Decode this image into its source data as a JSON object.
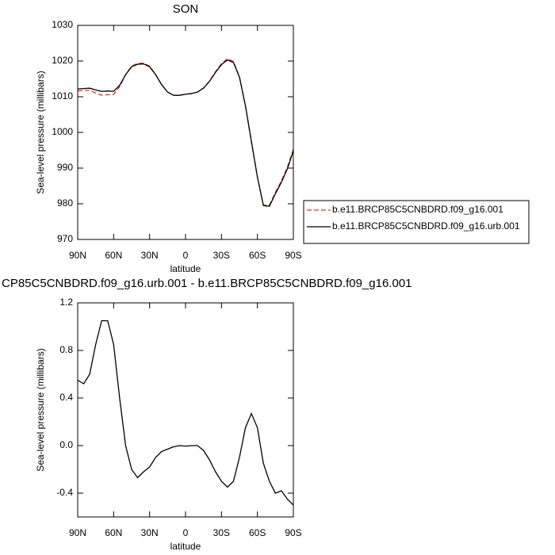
{
  "chart_data": [
    {
      "type": "line",
      "title": "SON",
      "xlabel": "latitude",
      "ylabel": "Sea-level pressure (millibars)",
      "x": [
        90,
        85,
        80,
        75,
        70,
        65,
        60,
        55,
        50,
        45,
        40,
        35,
        30,
        25,
        20,
        15,
        10,
        5,
        0,
        -5,
        -10,
        -15,
        -20,
        -25,
        -30,
        -35,
        -40,
        -45,
        -50,
        -55,
        -60,
        -65,
        -70,
        -75,
        -80,
        -85,
        -90
      ],
      "series": [
        {
          "name": "b.e11.BRCP85C5CNBDRD.f09_g16.001",
          "color": "#e0302e",
          "linestyle": "dashed",
          "values": [
            1011.65,
            1011.78,
            1011.8,
            1011.05,
            1010.45,
            1010.55,
            1010.65,
            1012.8,
            1016.2,
            1018.6,
            1019.37,
            1019.42,
            1018.58,
            1016.3,
            1013.45,
            1011.33,
            1010.41,
            1010.4,
            1010.7,
            1010.9,
            1011.3,
            1012.44,
            1014.42,
            1017.02,
            1019.3,
            1020.65,
            1019.9,
            1015.6,
            1007.35,
            997.23,
            987.35,
            979.65,
            979.6,
            983.2,
            986.38,
            990.25,
            995.3
          ]
        },
        {
          "name": "b.e11.BRCP85C5CNBDRD.f09_g16.urb.001",
          "color": "#000000",
          "linestyle": "solid",
          "values": [
            1012.2,
            1012.3,
            1012.4,
            1011.9,
            1011.5,
            1011.6,
            1011.5,
            1013.2,
            1016.2,
            1018.4,
            1019.1,
            1019.2,
            1018.4,
            1016.2,
            1013.4,
            1011.3,
            1010.4,
            1010.4,
            1010.7,
            1010.9,
            1011.3,
            1012.4,
            1014.3,
            1016.8,
            1019.0,
            1020.3,
            1019.6,
            1015.5,
            1007.5,
            997.5,
            987.5,
            979.5,
            979.3,
            982.8,
            986.0,
            989.8,
            994.8
          ]
        }
      ],
      "xlim": [
        90,
        -90
      ],
      "xticks": [
        {
          "value": 90,
          "label": "90N"
        },
        {
          "value": 60,
          "label": "60N"
        },
        {
          "value": 30,
          "label": "30N"
        },
        0,
        {
          "value": -30,
          "label": "30S"
        },
        {
          "value": -60,
          "label": "60S"
        },
        {
          "value": -90,
          "label": "90S"
        }
      ],
      "ylim": [
        970,
        1030
      ],
      "yticks": [
        970,
        980,
        990,
        1000,
        1010,
        1020,
        1030
      ],
      "legend": "right"
    },
    {
      "type": "line",
      "title": "CP85C5CNBDRD.f09_g16.urb.001 - b.e11.BRCP85C5CNBDRD.f09_g16.001",
      "xlabel": "latitude",
      "ylabel": "Sea-level pressure (millibars)",
      "x": [
        90,
        85,
        80,
        75,
        70,
        65,
        60,
        55,
        50,
        45,
        40,
        35,
        30,
        25,
        20,
        15,
        10,
        5,
        0,
        -5,
        -10,
        -15,
        -20,
        -25,
        -30,
        -35,
        -40,
        -45,
        -50,
        -55,
        -60,
        -65,
        -70,
        -75,
        -80,
        -85,
        -90
      ],
      "series": [
        {
          "color": "#000000",
          "linestyle": "solid",
          "values": [
            0.55,
            0.52,
            0.6,
            0.85,
            1.05,
            1.05,
            0.85,
            0.4,
            0.0,
            -0.2,
            -0.27,
            -0.22,
            -0.18,
            -0.1,
            -0.05,
            -0.03,
            -0.01,
            0.0,
            -0.005,
            0.0,
            0.0,
            -0.04,
            -0.12,
            -0.22,
            -0.3,
            -0.35,
            -0.3,
            -0.1,
            0.15,
            0.27,
            0.15,
            -0.15,
            -0.3,
            -0.4,
            -0.38,
            -0.45,
            -0.5
          ]
        }
      ],
      "xlim": [
        90,
        -90
      ],
      "xticks": [
        {
          "value": 90,
          "label": "90N"
        },
        {
          "value": 60,
          "label": "60N"
        },
        {
          "value": 30,
          "label": "30N"
        },
        0,
        {
          "value": -30,
          "label": "30S"
        },
        {
          "value": -60,
          "label": "60S"
        },
        {
          "value": -90,
          "label": "90S"
        }
      ],
      "ylim": [
        -0.6,
        1.2
      ],
      "yticks": [
        -0.4,
        {
          "value": 0,
          "label": "0.0"
        },
        0.4,
        0.8,
        1.2
      ]
    }
  ]
}
